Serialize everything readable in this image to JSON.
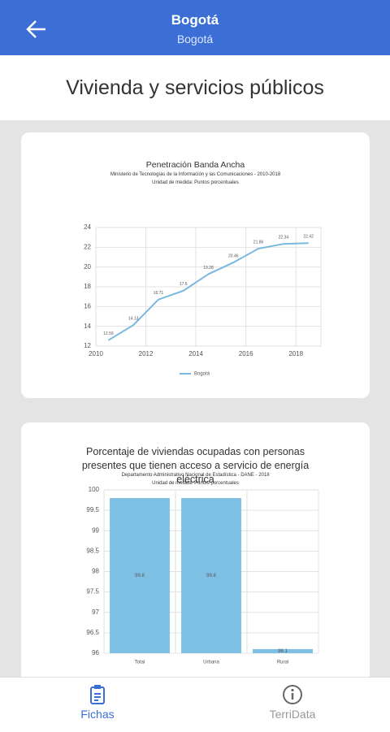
{
  "header": {
    "title": "Bogotá",
    "subtitle": "Bogotá"
  },
  "section_title": "Vivienda y servicios públicos",
  "chart_data": [
    {
      "type": "line",
      "title": "Penetración Banda Ancha",
      "subtitle": "Ministerio de Tecnologías de la Información y las Comunicaciones - 2010-2018",
      "unit": "Unidad de medida: Puntos porcentuales",
      "x": [
        2010.5,
        2011.5,
        2012.5,
        2013.5,
        2014.5,
        2015.5,
        2016.5,
        2017.5,
        2018.5
      ],
      "series": [
        {
          "name": "Bogotá",
          "color": "#7ab8e0",
          "values": [
            12.59,
            14.13,
            16.71,
            17.6,
            19.28,
            20.46,
            21.86,
            22.34,
            22.42
          ]
        }
      ],
      "xlim": [
        2010,
        2019
      ],
      "xticks": [
        2010,
        2012,
        2014,
        2016,
        2018
      ],
      "ylim": [
        12,
        24
      ],
      "yticks": [
        12,
        14,
        16,
        18,
        20,
        22,
        24
      ],
      "grid": true,
      "legend": "bottom"
    },
    {
      "type": "bar",
      "title": "Porcentaje de viviendas ocupadas con personas presentes que tienen acceso a servicio de energía eléctrica",
      "subtitle": "Departamento Administrativo Nacional de Estadística - DANE - 2018",
      "unit": "Unidad de medida: Puntos porcentuales",
      "categories": [
        "Total",
        "Urbana",
        "Rural"
      ],
      "values": [
        99.8,
        99.8,
        96.1
      ],
      "color": "#7ec0e4",
      "ylim": [
        96,
        100
      ],
      "yticks": [
        96,
        96.5,
        97,
        97.5,
        98,
        98.5,
        99,
        99.5,
        100
      ],
      "grid": true
    }
  ],
  "nav": [
    "Fichas",
    "TerriData"
  ]
}
